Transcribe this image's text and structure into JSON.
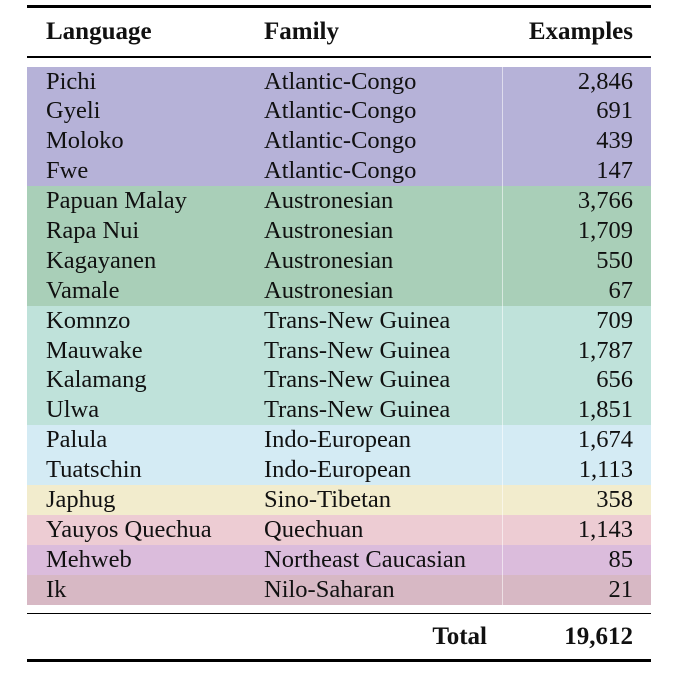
{
  "table": {
    "headers": {
      "language": "Language",
      "family": "Family",
      "examples": "Examples"
    },
    "family_colors": {
      "Atlantic-Congo": "#b6b2d8",
      "Austronesian": "#a9cfb8",
      "Trans-New Guinea": "#bfe2da",
      "Indo-European": "#d4ebf4",
      "Sino-Tibetan": "#f2eccd",
      "Quechuan": "#edccd3",
      "Northeast Caucasian": "#dbbcdc",
      "Nilo-Saharan": "#d7b8c4"
    },
    "rows": [
      {
        "language": "Pichi",
        "family": "Atlantic-Congo",
        "examples": "2,846"
      },
      {
        "language": "Gyeli",
        "family": "Atlantic-Congo",
        "examples": "691"
      },
      {
        "language": "Moloko",
        "family": "Atlantic-Congo",
        "examples": "439"
      },
      {
        "language": "Fwe",
        "family": "Atlantic-Congo",
        "examples": "147"
      },
      {
        "language": "Papuan Malay",
        "family": "Austronesian",
        "examples": "3,766"
      },
      {
        "language": "Rapa Nui",
        "family": "Austronesian",
        "examples": "1,709"
      },
      {
        "language": "Kagayanen",
        "family": "Austronesian",
        "examples": "550"
      },
      {
        "language": "Vamale",
        "family": "Austronesian",
        "examples": "67"
      },
      {
        "language": "Komnzo",
        "family": "Trans-New Guinea",
        "examples": "709"
      },
      {
        "language": "Mauwake",
        "family": "Trans-New Guinea",
        "examples": "1,787"
      },
      {
        "language": "Kalamang",
        "family": "Trans-New Guinea",
        "examples": "656"
      },
      {
        "language": "Ulwa",
        "family": "Trans-New Guinea",
        "examples": "1,851"
      },
      {
        "language": "Palula",
        "family": "Indo-European",
        "examples": "1,674"
      },
      {
        "language": "Tuatschin",
        "family": "Indo-European",
        "examples": "1,113"
      },
      {
        "language": "Japhug",
        "family": "Sino-Tibetan",
        "examples": "358"
      },
      {
        "language": "Yauyos Quechua",
        "family": "Quechuan",
        "examples": "1,143"
      },
      {
        "language": "Mehweb",
        "family": "Northeast Caucasian",
        "examples": "85"
      },
      {
        "language": "Ik",
        "family": "Nilo-Saharan",
        "examples": "21"
      }
    ],
    "total": {
      "label": "Total",
      "value": "19,612"
    }
  }
}
